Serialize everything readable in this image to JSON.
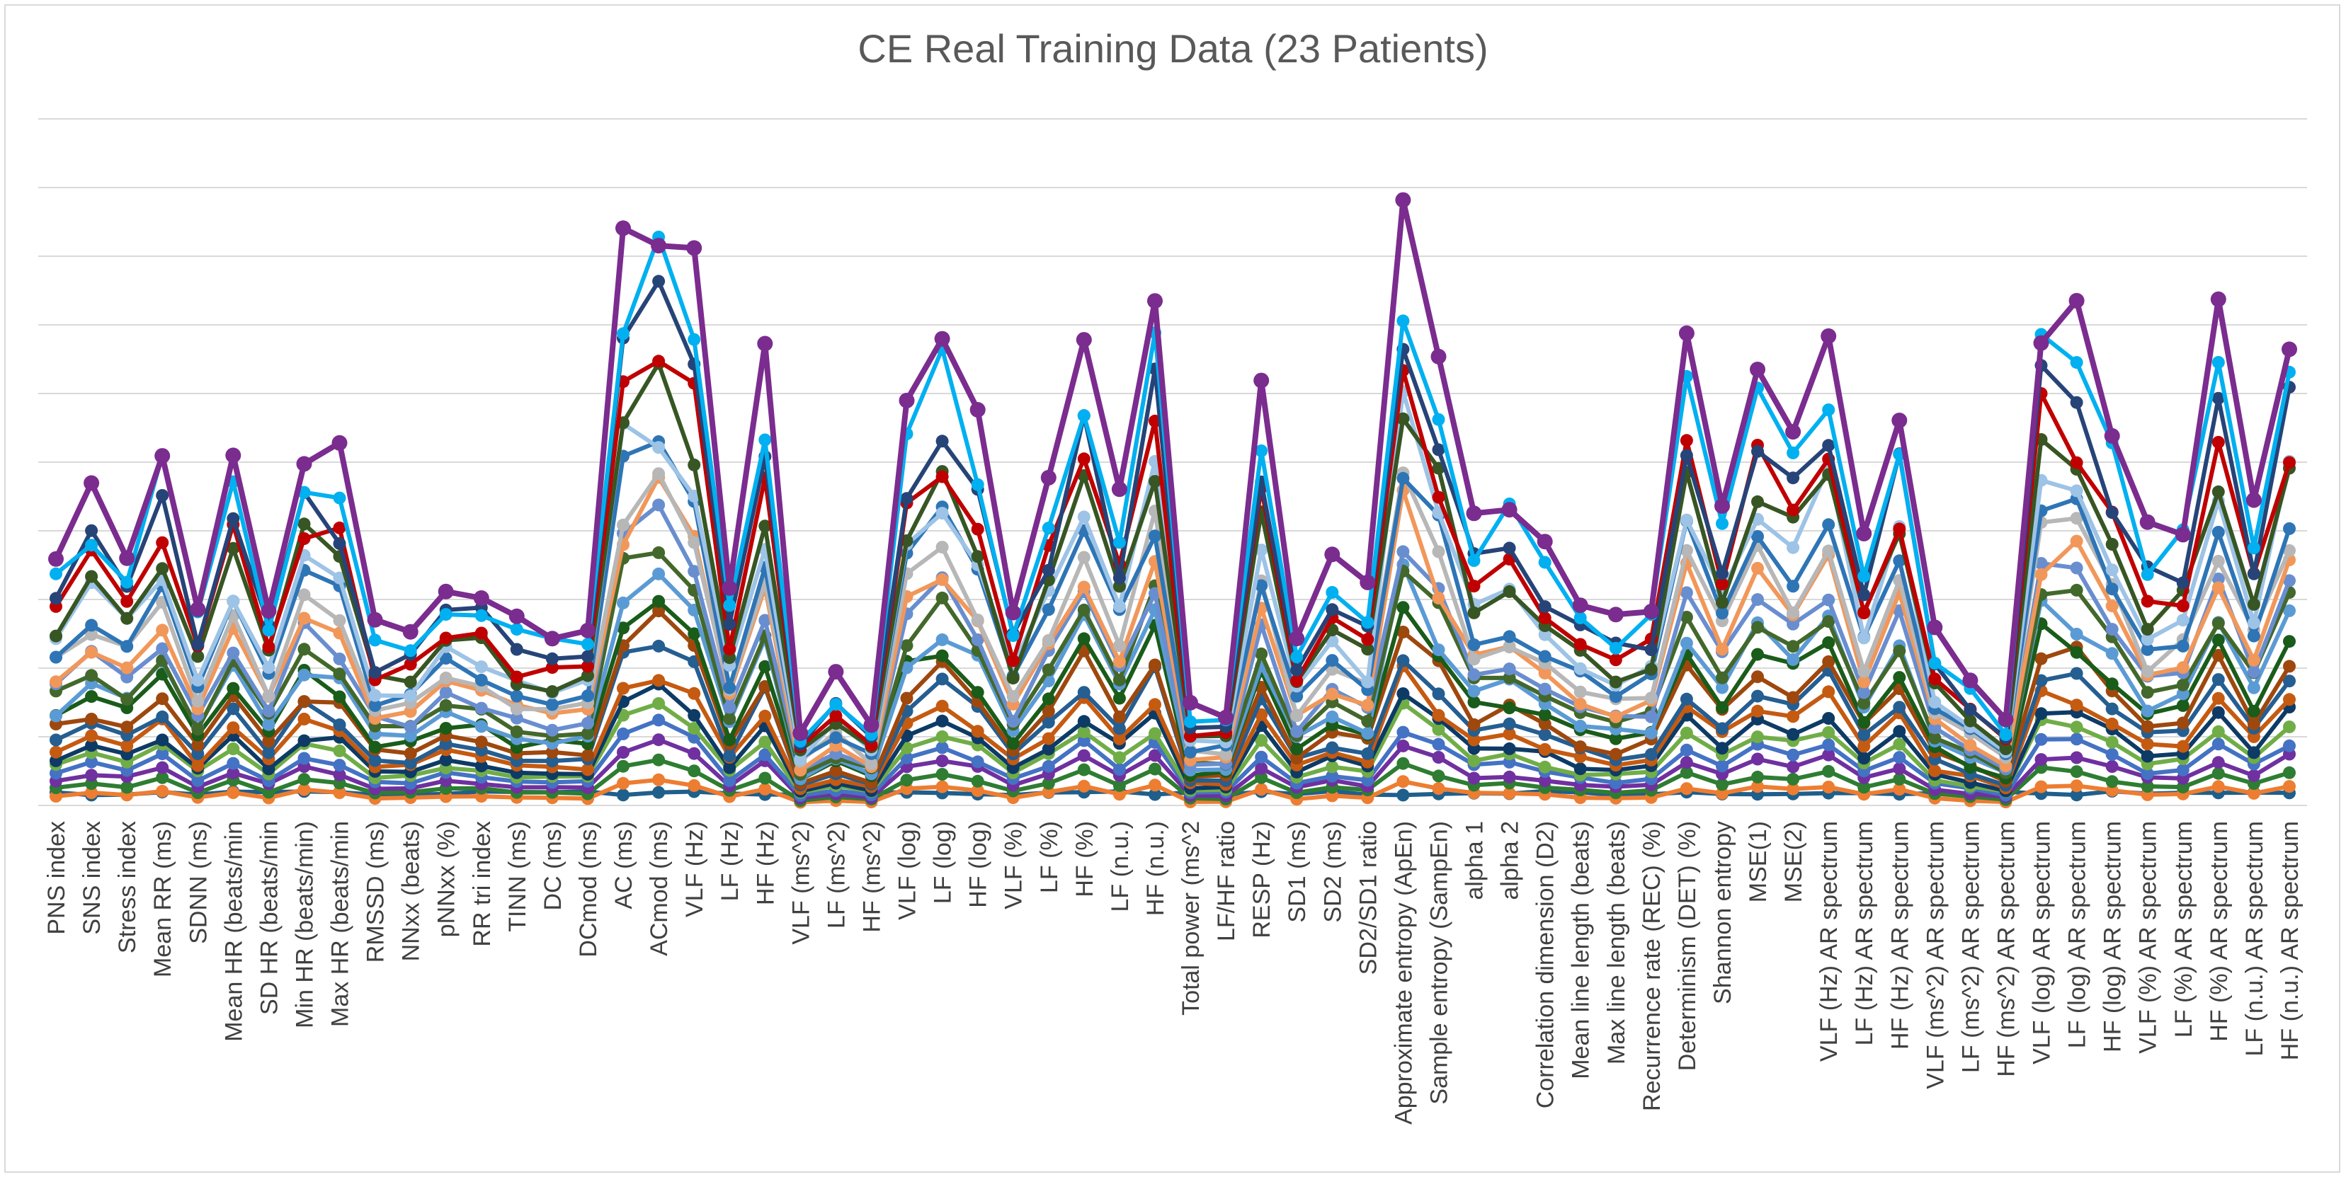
{
  "chart_data": {
    "type": "line",
    "title": "CE Real Training Data (23 Patients)",
    "xlabel": "",
    "ylabel": "",
    "y_tick_labels_shown": false,
    "grid": true,
    "legend": "none",
    "ylim": [
      0,
      10
    ],
    "categories": [
      "PNS index",
      "SNS index",
      "Stress index",
      "Mean RR  (ms)",
      "SDNN (ms)",
      "Mean HR (beats/min",
      "SD HR (beats/min",
      "Min HR (beats/min)",
      "Max HR (beats/min",
      "RMSSD (ms)",
      "NNxx (beats)",
      "pNNxx (%)",
      "RR tri index",
      "TINN (ms)",
      "DC (ms)",
      "DCmod (ms)",
      "AC (ms)",
      "ACmod (ms)",
      "VLF (Hz)",
      "LF (Hz)",
      "HF (Hz)",
      "VLF (ms^2)",
      "LF (ms^2)",
      "HF (ms^2)",
      "VLF (log)",
      "LF (log)",
      "HF (log)",
      "VLF (%)",
      "LF (%)",
      "HF (%)",
      "LF (n.u.)",
      "HF (n.u.)",
      "Total power (ms^2",
      "LF/HF ratio",
      "RESP (Hz)",
      "SD1 (ms)",
      "SD2 (ms)",
      "SD2/SD1 ratio",
      "Approximate entropy (ApEn)",
      "Sample entropy (SampEn)",
      "alpha 1",
      "alpha 2",
      "Correlation dimension (D2)",
      "Mean line length (beats)",
      "Max line length (beats)",
      "Recurrence rate (REC) (%)",
      "Determinism (DET) (%)",
      "Shannon entropy",
      "MSE(1)",
      "MSE(2)",
      "VLF (Hz) AR spectrum",
      "LF (Hz) AR spectrum",
      "HF (Hz) AR spectrum",
      "VLF (ms^2) AR spectrum",
      "LF (ms^2) AR spectrum",
      "HF (ms^2) AR spectrum",
      "VLF (log) AR spectrum",
      "LF (log) AR spectrum",
      "HF (log) AR spectrum",
      "VLF (%) AR spectrum",
      "LF (%) AR spectrum",
      "HF (%) AR spectrum",
      "LF (n.u.) AR spectrum",
      "HF (n.u.) AR spectrum"
    ],
    "profile": [
      3.65,
      4.6,
      3.9,
      5.4,
      2.9,
      5.0,
      3.0,
      5.4,
      4.9,
      2.6,
      2.6,
      3.4,
      3.3,
      2.7,
      2.6,
      2.6,
      8.0,
      8.8,
      7.5,
      3.0,
      6.2,
      1.1,
      1.8,
      1.2,
      5.7,
      6.8,
      5.3,
      2.9,
      4.6,
      6.9,
      4.4,
      7.2,
      1.4,
      1.4,
      5.7,
      2.5,
      3.5,
      3.0,
      8.6,
      6.5,
      4.2,
      4.5,
      3.8,
      3.0,
      2.7,
      3.0,
      6.5,
      4.5,
      6.5,
      5.6,
      7.0,
      3.8,
      5.8,
      2.5,
      1.8,
      1.2,
      7.3,
      7.2,
      5.4,
      3.9,
      4.2,
      6.8,
      4.3,
      7.2
    ],
    "series_fractions": [
      0.015,
      0.04,
      0.07,
      0.1,
      0.13,
      0.16,
      0.19,
      0.22,
      0.26,
      0.3,
      0.34,
      0.38,
      0.42,
      0.46,
      0.5,
      0.55,
      0.6,
      0.65,
      0.7,
      0.76,
      0.82,
      0.9,
      1.0
    ],
    "series_colors": [
      "#1f5f8b",
      "#ed7d31",
      "#2e7d32",
      "#7030a0",
      "#4472c4",
      "#70ad47",
      "#0d3b66",
      "#c55a11",
      "#255e91",
      "#9e480e",
      "#1a5c1a",
      "#5b9bd5",
      "#43682b",
      "#698ed0",
      "#f1975a",
      "#b7b7b7",
      "#2e75b6",
      "#9dc3e6",
      "#375623",
      "#c00000",
      "#264478",
      "#00b0f0",
      "#7b2c8f"
    ],
    "series_count": 23
  }
}
